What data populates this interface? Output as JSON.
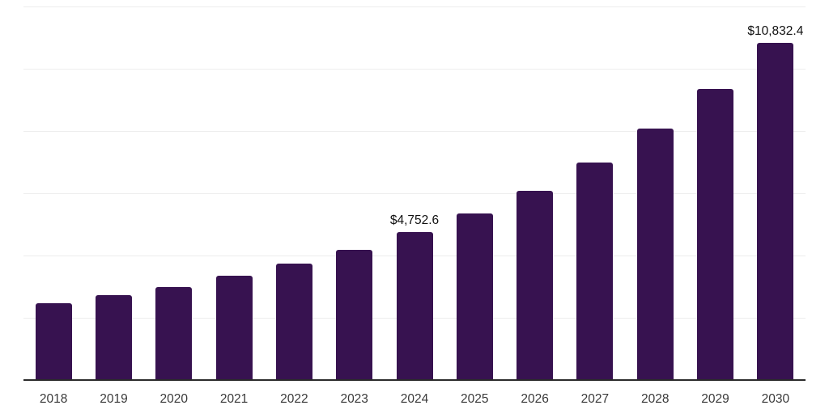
{
  "chart_data": {
    "type": "bar",
    "title": "",
    "xlabel": "",
    "ylabel": "",
    "categories": [
      "2018",
      "2019",
      "2020",
      "2021",
      "2022",
      "2023",
      "2024",
      "2025",
      "2026",
      "2027",
      "2028",
      "2029",
      "2030"
    ],
    "values": [
      2480,
      2720,
      2980,
      3340,
      3730,
      4170,
      4752.6,
      5360,
      6080,
      6990,
      8070,
      9340,
      10832.4
    ],
    "value_labels": [
      "",
      "",
      "",
      "",
      "",
      "",
      "$4,752.6",
      "",
      "",
      "",
      "",
      "",
      "$10,832.4"
    ],
    "ylim": [
      0,
      12000
    ],
    "grid_step": 2000,
    "grid": true,
    "legend": "none",
    "y_tick_labels_shown": false,
    "colors": {
      "bar": "#371250",
      "axis_line": "#2b2b2b",
      "gridline": "#ededed",
      "tick_label": "#3a3a3a",
      "value_label": "#111111",
      "background": "#ffffff"
    }
  }
}
